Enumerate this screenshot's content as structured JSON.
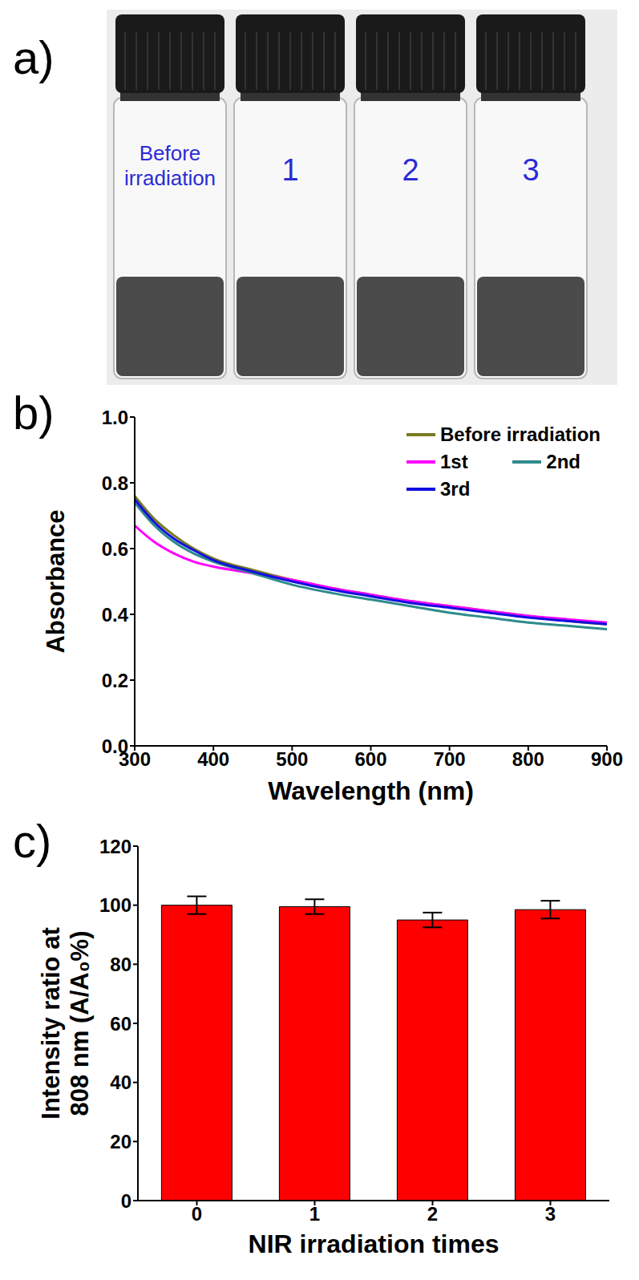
{
  "panel_a": {
    "panel_label": "a)",
    "vials": [
      "Before irradiation",
      "1",
      "2",
      "3"
    ]
  },
  "chart_data": [
    {
      "panel_label": "b)",
      "type": "line",
      "x_label": "Wavelength (nm)",
      "y_label": "Absorbance",
      "x": [
        300,
        325,
        350,
        375,
        400,
        450,
        500,
        550,
        600,
        650,
        700,
        750,
        800,
        850,
        900
      ],
      "series": [
        {
          "name": "Before irradiation",
          "color": "#7a7a22",
          "values": [
            0.76,
            0.69,
            0.64,
            0.6,
            0.57,
            0.535,
            0.505,
            0.48,
            0.46,
            0.44,
            0.425,
            0.41,
            0.395,
            0.38,
            0.37
          ]
        },
        {
          "name": "1st",
          "color": "#ff00ff",
          "values": [
            0.67,
            0.62,
            0.585,
            0.56,
            0.545,
            0.525,
            0.505,
            0.48,
            0.46,
            0.44,
            0.425,
            0.41,
            0.395,
            0.385,
            0.375
          ]
        },
        {
          "name": "2nd",
          "color": "#2e8b8b",
          "values": [
            0.74,
            0.67,
            0.62,
            0.585,
            0.56,
            0.525,
            0.49,
            0.465,
            0.445,
            0.425,
            0.405,
            0.39,
            0.375,
            0.365,
            0.355
          ]
        },
        {
          "name": "3rd",
          "color": "#1010e0",
          "values": [
            0.75,
            0.68,
            0.63,
            0.595,
            0.565,
            0.53,
            0.5,
            0.475,
            0.455,
            0.435,
            0.42,
            0.405,
            0.39,
            0.38,
            0.37
          ]
        }
      ],
      "xlim": [
        300,
        900
      ],
      "xticks": [
        300,
        400,
        500,
        600,
        700,
        800,
        900
      ],
      "ylim": [
        0,
        1
      ],
      "yticks": [
        {
          "value": 0,
          "label": "0.0"
        },
        0.2,
        0.4,
        0.6,
        0.8,
        {
          "value": 1,
          "label": "1.0"
        }
      ],
      "legend": "upper right",
      "grid": false
    },
    {
      "panel_label": "c)",
      "type": "bar",
      "x_label": "NIR irradiation times",
      "y_label": "Intensity ratio at 808 nm (A/A₀%)",
      "categories": [
        "0",
        "1",
        "2",
        "3"
      ],
      "values": [
        100,
        99.5,
        95,
        98.5
      ],
      "errors": [
        3,
        2.5,
        2.5,
        3
      ],
      "color": "#ff0000",
      "ylim": [
        0,
        120
      ],
      "yticks": [
        0,
        20,
        40,
        60,
        80,
        100,
        120
      ],
      "grid": false
    }
  ]
}
